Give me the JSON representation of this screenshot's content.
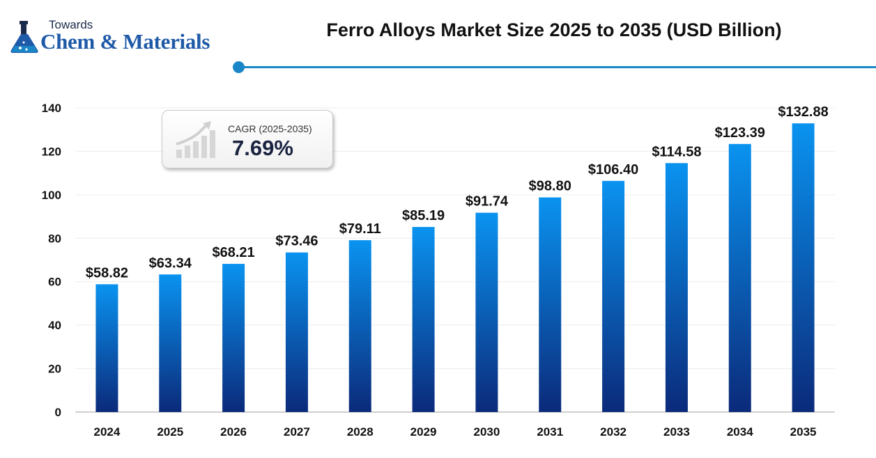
{
  "brand": {
    "small_text": "Towards",
    "name": "Chem & Materials",
    "icon": "flask-icon",
    "accent_color": "#1a86c8"
  },
  "cagr": {
    "label": "CAGR (2025-2035)",
    "value": "7.69%",
    "icon": "growth-chart-icon"
  },
  "chart_data": {
    "type": "bar",
    "title": "Ferro Alloys Market Size 2025 to 2035 (USD Billion)",
    "categories": [
      "2024",
      "2025",
      "2026",
      "2027",
      "2028",
      "2029",
      "2030",
      "2031",
      "2032",
      "2033",
      "2034",
      "2035"
    ],
    "values": [
      58.82,
      63.34,
      68.21,
      73.46,
      79.11,
      85.19,
      91.74,
      98.8,
      106.4,
      114.58,
      123.39,
      132.88
    ],
    "data_labels": [
      "$58.82",
      "$63.34",
      "$68.21",
      "$73.46",
      "$79.11",
      "$85.19",
      "$91.74",
      "$98.80",
      "$106.40",
      "$114.58",
      "$123.39",
      "$132.88"
    ],
    "xlabel": "",
    "ylabel": "",
    "ylim": [
      0,
      140
    ],
    "yticks": [
      0,
      20,
      40,
      60,
      80,
      100,
      120,
      140
    ],
    "grid": true,
    "bar_color_top": "#0a93f0",
    "bar_color_bottom": "#0b2a7a"
  }
}
